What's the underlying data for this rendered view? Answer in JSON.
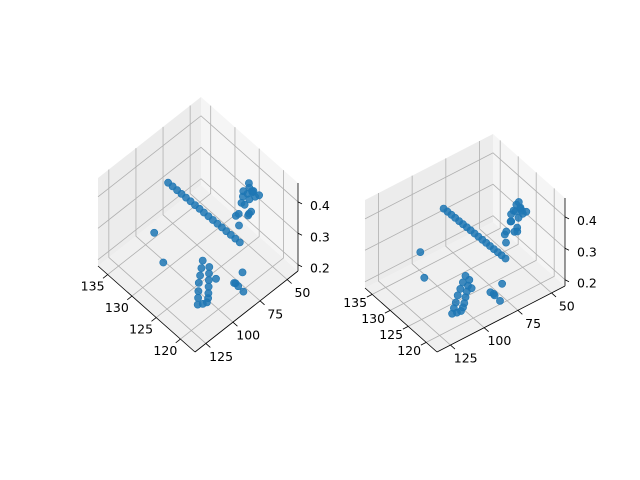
{
  "chart_data": [
    {
      "type": "scatter",
      "projection": "3d",
      "title": "",
      "xlabel": "",
      "ylabel": "",
      "zlabel": "",
      "grid": true,
      "marker_color": "#1f77b4",
      "x_ticks": [
        "120",
        "125",
        "130",
        "135"
      ],
      "y_ticks": [
        "50",
        "75",
        "100",
        "125"
      ],
      "z_ticks": [
        "0.2",
        "0.3",
        "0.4"
      ],
      "xlim": [
        117,
        137
      ],
      "ylim": [
        40,
        135
      ],
      "zlim": [
        0.18,
        0.46
      ],
      "series": [
        {
          "points": [
            [
              133.5,
              86,
              0.36
            ],
            [
              132.8,
              85,
              0.355
            ],
            [
              132.1,
              84,
              0.35
            ],
            [
              131.4,
              83,
              0.345
            ],
            [
              130.7,
              82,
              0.34
            ],
            [
              130.0,
              81,
              0.335
            ],
            [
              129.3,
              80,
              0.33
            ],
            [
              128.6,
              79,
              0.325
            ],
            [
              127.9,
              78,
              0.32
            ],
            [
              127.2,
              77,
              0.315
            ],
            [
              126.5,
              76,
              0.31
            ],
            [
              125.8,
              75,
              0.305
            ],
            [
              125.1,
              74,
              0.3
            ],
            [
              124.4,
              73,
              0.295
            ],
            [
              123.7,
              72,
              0.29
            ],
            [
              123.0,
              71,
              0.285
            ],
            [
              122.3,
              70,
              0.28
            ],
            [
              122,
              60,
              0.42
            ],
            [
              122.5,
              62,
              0.41
            ],
            [
              123,
              64,
              0.4
            ],
            [
              121.5,
              61,
              0.43
            ],
            [
              121,
              58,
              0.415
            ],
            [
              122.8,
              59,
              0.38
            ],
            [
              123.5,
              63,
              0.37
            ],
            [
              122.2,
              66,
              0.39
            ],
            [
              121.7,
              65,
              0.36
            ],
            [
              123.2,
              67,
              0.35
            ],
            [
              122.6,
              57,
              0.4
            ],
            [
              121.9,
              63,
              0.44
            ],
            [
              123.8,
              60,
              0.395
            ],
            [
              122.4,
              61,
              0.345
            ],
            [
              121.3,
              64,
              0.375
            ],
            [
              124.0,
              66,
              0.33
            ],
            [
              122.9,
              68,
              0.32
            ],
            [
              121.6,
              59,
              0.405
            ],
            [
              123.1,
              58,
              0.425
            ],
            [
              123,
              95,
              0.26
            ],
            [
              122.6,
              97,
              0.25
            ],
            [
              122.2,
              99,
              0.24
            ],
            [
              121.8,
              101,
              0.23
            ],
            [
              121.4,
              103,
              0.22
            ],
            [
              121.0,
              105,
              0.215
            ],
            [
              120.8,
              107,
              0.21
            ],
            [
              121.2,
              109,
              0.205
            ],
            [
              121.8,
              111,
              0.2
            ],
            [
              122.4,
              108,
              0.205
            ],
            [
              123.0,
              105,
              0.21
            ],
            [
              123.6,
              102,
              0.22
            ],
            [
              124.0,
              99,
              0.23
            ],
            [
              124.4,
              96,
              0.24
            ],
            [
              124.8,
              93,
              0.25
            ],
            [
              120.5,
              100,
              0.27
            ],
            [
              119.5,
              80,
              0.25
            ],
            [
              118.6,
              88,
              0.24
            ],
            [
              119.0,
              90,
              0.25
            ],
            [
              119.6,
              86,
              0.23
            ],
            [
              118.2,
              85,
              0.22
            ],
            [
              131,
              110,
              0.3
            ],
            [
              128,
              115,
              0.26
            ]
          ]
        }
      ]
    },
    {
      "type": "scatter",
      "projection": "3d",
      "title": "",
      "xlabel": "",
      "ylabel": "",
      "zlabel": "",
      "grid": true,
      "marker_color": "#1f77b4",
      "x_ticks": [
        "120",
        "125",
        "130",
        "135"
      ],
      "y_ticks": [
        "50",
        "75",
        "100",
        "125"
      ],
      "z_ticks": [
        "0.2",
        "0.3",
        "0.4"
      ],
      "xlim": [
        117,
        137
      ],
      "ylim": [
        40,
        135
      ],
      "zlim": [
        0.18,
        0.46
      ],
      "series": [
        {
          "points": [
            [
              133.5,
              86,
              0.36
            ],
            [
              132.8,
              85,
              0.355
            ],
            [
              132.1,
              84,
              0.35
            ],
            [
              131.4,
              83,
              0.345
            ],
            [
              130.7,
              82,
              0.34
            ],
            [
              130.0,
              81,
              0.335
            ],
            [
              129.3,
              80,
              0.33
            ],
            [
              128.6,
              79,
              0.325
            ],
            [
              127.9,
              78,
              0.32
            ],
            [
              127.2,
              77,
              0.315
            ],
            [
              126.5,
              76,
              0.31
            ],
            [
              125.8,
              75,
              0.305
            ],
            [
              125.1,
              74,
              0.3
            ],
            [
              124.4,
              73,
              0.295
            ],
            [
              123.7,
              72,
              0.29
            ],
            [
              123.0,
              71,
              0.285
            ],
            [
              122.3,
              70,
              0.28
            ],
            [
              122,
              60,
              0.42
            ],
            [
              122.5,
              62,
              0.41
            ],
            [
              123,
              64,
              0.4
            ],
            [
              121.5,
              61,
              0.43
            ],
            [
              121,
              58,
              0.415
            ],
            [
              122.8,
              59,
              0.38
            ],
            [
              123.5,
              63,
              0.37
            ],
            [
              122.2,
              66,
              0.39
            ],
            [
              121.7,
              65,
              0.36
            ],
            [
              123.2,
              67,
              0.35
            ],
            [
              122.6,
              57,
              0.4
            ],
            [
              121.9,
              63,
              0.44
            ],
            [
              123.8,
              60,
              0.395
            ],
            [
              122.4,
              61,
              0.345
            ],
            [
              121.3,
              64,
              0.375
            ],
            [
              124.0,
              66,
              0.33
            ],
            [
              122.9,
              68,
              0.32
            ],
            [
              121.6,
              59,
              0.405
            ],
            [
              123.1,
              58,
              0.425
            ],
            [
              123,
              95,
              0.26
            ],
            [
              122.6,
              97,
              0.25
            ],
            [
              122.2,
              99,
              0.24
            ],
            [
              121.8,
              101,
              0.23
            ],
            [
              121.4,
              103,
              0.22
            ],
            [
              121.0,
              105,
              0.215
            ],
            [
              120.8,
              107,
              0.21
            ],
            [
              121.2,
              109,
              0.205
            ],
            [
              121.8,
              111,
              0.2
            ],
            [
              122.4,
              108,
              0.205
            ],
            [
              123.0,
              105,
              0.21
            ],
            [
              123.6,
              102,
              0.22
            ],
            [
              124.0,
              99,
              0.23
            ],
            [
              124.4,
              96,
              0.24
            ],
            [
              124.8,
              93,
              0.25
            ],
            [
              120.5,
              100,
              0.27
            ],
            [
              119.5,
              80,
              0.25
            ],
            [
              118.6,
              88,
              0.24
            ],
            [
              119.0,
              90,
              0.25
            ],
            [
              119.6,
              86,
              0.23
            ],
            [
              118.2,
              85,
              0.22
            ],
            [
              131,
              110,
              0.3
            ],
            [
              128,
              115,
              0.26
            ]
          ]
        }
      ]
    }
  ]
}
